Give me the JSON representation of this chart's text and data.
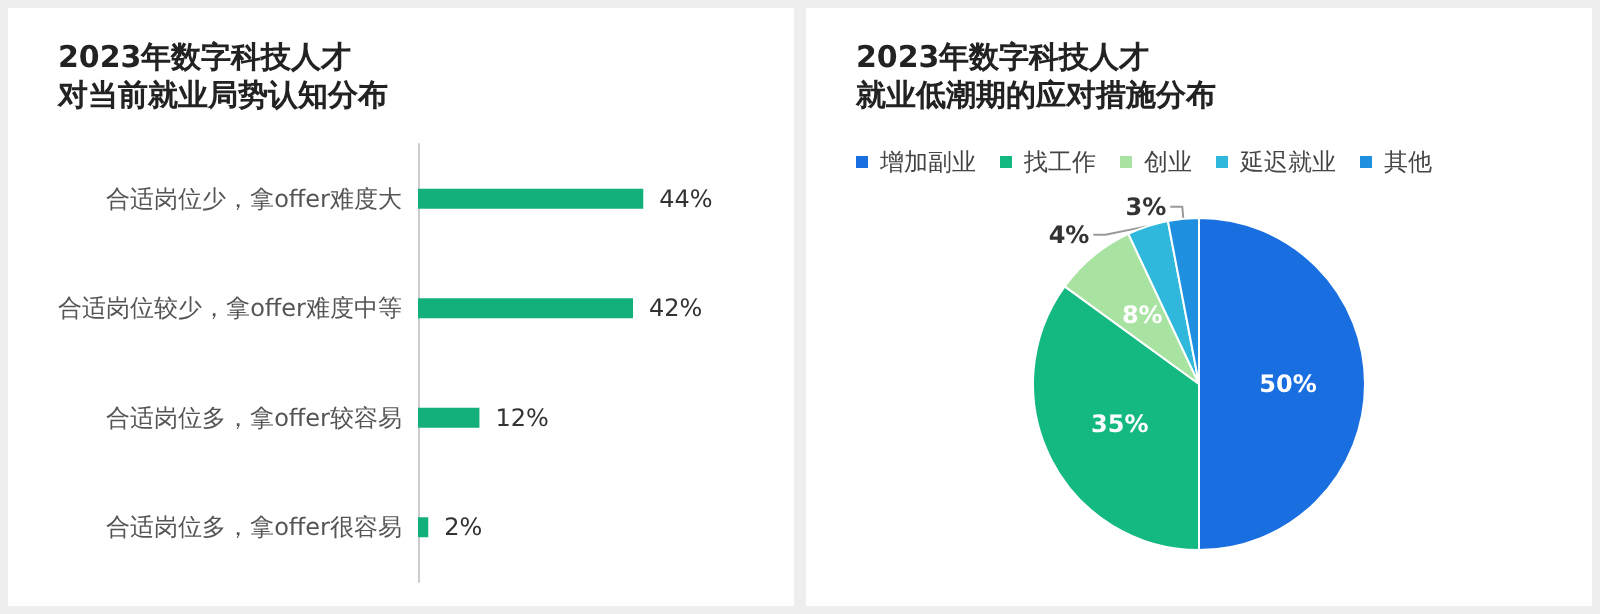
{
  "chart_data": [
    {
      "type": "bar",
      "orientation": "horizontal",
      "title": "2023年数字科技人才",
      "subtitle": "对当前就业局势认知分布",
      "categories": [
        "合适岗位少，拿offer难度大",
        "合适岗位较少，拿offer难度中等",
        "合适岗位多，拿offer较容易",
        "合适岗位多，拿offer很容易"
      ],
      "values": [
        44,
        42,
        12,
        2
      ],
      "value_labels": [
        "44%",
        "42%",
        "12%",
        "2%"
      ],
      "color": "#13b07c",
      "legend": false
    },
    {
      "type": "pie",
      "title": "2023年数字科技人才",
      "subtitle": "就业低潮期的应对措施分布",
      "categories": [
        "增加副业",
        "找工作",
        "创业",
        "延迟就业",
        "其他"
      ],
      "values": [
        50,
        35,
        8,
        4,
        3
      ],
      "value_labels": [
        "50%",
        "35%",
        "8%",
        "4%",
        "3%"
      ],
      "colors": [
        "#1a6fe0",
        "#14b881",
        "#a8e3a2",
        "#2fb8dc",
        "#1f8fe0"
      ],
      "legend": "top left"
    }
  ]
}
